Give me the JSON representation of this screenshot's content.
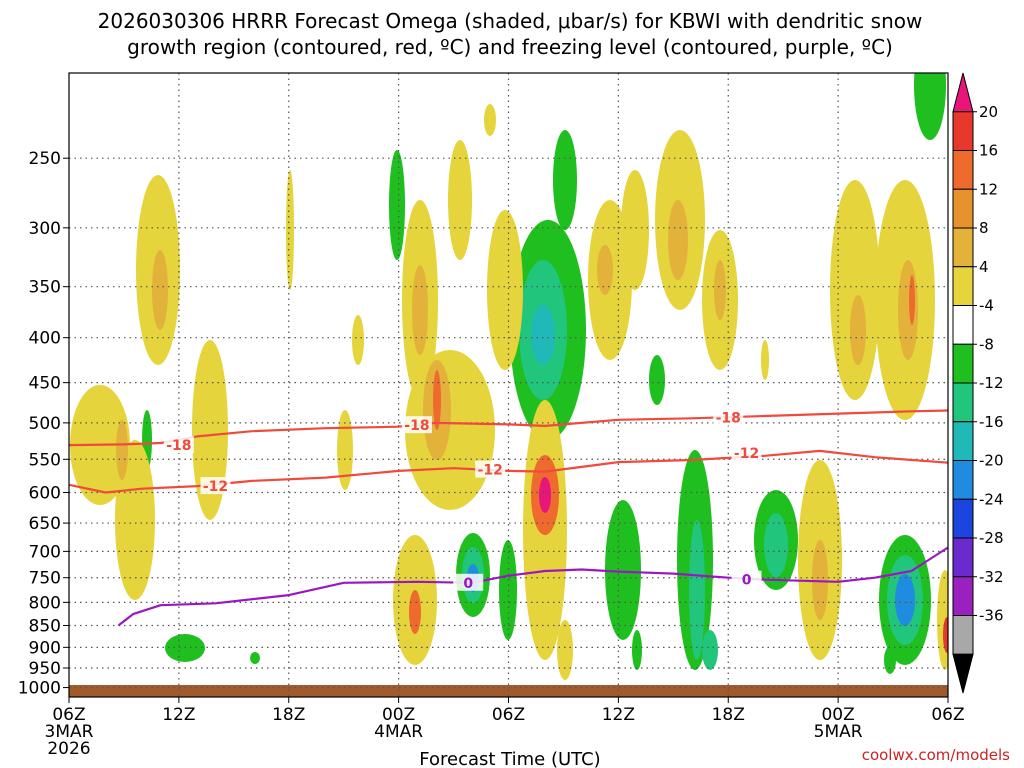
{
  "chart_data": {
    "type": "heatmap",
    "title_lines": [
      "2026030306 HRRR Forecast Omega (shaded, μbar/s) for KBWI with dendritic snow",
      "growth region (contoured, red, ºC) and freezing level (contoured, purple, ºC)"
    ],
    "xlabel": "Forecast Time (UTC)",
    "credit": "coolwx.com/models",
    "x_range_hours": [
      0,
      48
    ],
    "x_ticks": [
      {
        "h": 0,
        "lines": [
          "06Z",
          "3MAR",
          "2026"
        ]
      },
      {
        "h": 6,
        "lines": [
          "12Z"
        ]
      },
      {
        "h": 12,
        "lines": [
          "18Z"
        ]
      },
      {
        "h": 18,
        "lines": [
          "00Z",
          "4MAR"
        ]
      },
      {
        "h": 24,
        "lines": [
          "06Z"
        ]
      },
      {
        "h": 30,
        "lines": [
          "12Z"
        ]
      },
      {
        "h": 36,
        "lines": [
          "18Z"
        ]
      },
      {
        "h": 42,
        "lines": [
          "00Z",
          "5MAR"
        ]
      },
      {
        "h": 48,
        "lines": [
          "06Z"
        ]
      }
    ],
    "y_ticks_hpa": [
      250,
      300,
      350,
      400,
      450,
      500,
      550,
      600,
      650,
      700,
      750,
      800,
      850,
      900,
      950,
      1000
    ],
    "y_range_hpa": [
      200,
      1025
    ],
    "colorbar": {
      "labels": [
        "20",
        "16",
        "12",
        "8",
        "4",
        "-4",
        "-8",
        "-12",
        "-16",
        "-20",
        "-24",
        "-28",
        "-32",
        "-36"
      ],
      "colors": [
        "#e8157a",
        "#e8382c",
        "#ef6a2d",
        "#e8922e",
        "#e3b23b",
        "#e5d43b",
        "#ffffff",
        "#1fbf1f",
        "#22c57c",
        "#21b8b8",
        "#1f8ce0",
        "#1c45dd",
        "#6a2acd",
        "#9a20c0",
        "#a8a8a8",
        "#000000"
      ]
    },
    "contours": [
      {
        "label": "-18",
        "color": "#ef4a3c",
        "kind": "dgz",
        "points": [
          [
            0,
            530
          ],
          [
            3,
            529
          ],
          [
            5,
            527
          ],
          [
            7,
            518
          ],
          [
            10,
            511
          ],
          [
            14,
            507
          ],
          [
            18,
            505
          ],
          [
            20,
            500
          ],
          [
            24,
            502
          ],
          [
            26,
            504
          ],
          [
            30,
            496
          ],
          [
            34,
            494
          ],
          [
            38,
            491
          ],
          [
            42,
            488
          ],
          [
            46,
            485
          ],
          [
            48,
            484
          ]
        ],
        "labels": [
          [
            6,
            530
          ],
          [
            19,
            503
          ],
          [
            36,
            493
          ]
        ]
      },
      {
        "label": "-12",
        "color": "#ef4a3c",
        "kind": "dgz",
        "points": [
          [
            0,
            588
          ],
          [
            2,
            600
          ],
          [
            4,
            594
          ],
          [
            7,
            590
          ],
          [
            10,
            582
          ],
          [
            14,
            577
          ],
          [
            18,
            567
          ],
          [
            21,
            563
          ],
          [
            24,
            567
          ],
          [
            26,
            568
          ],
          [
            30,
            554
          ],
          [
            34,
            551
          ],
          [
            38,
            545
          ],
          [
            41,
            538
          ],
          [
            44,
            547
          ],
          [
            48,
            555
          ]
        ],
        "labels": [
          [
            8,
            590
          ],
          [
            23,
            565
          ],
          [
            37,
            541
          ]
        ]
      },
      {
        "label": "0",
        "color": "#9b17c3",
        "kind": "fzl",
        "points": [
          [
            2.7,
            850
          ],
          [
            3.5,
            825
          ],
          [
            5,
            806
          ],
          [
            8,
            802
          ],
          [
            12,
            785
          ],
          [
            15,
            760
          ],
          [
            19,
            758
          ],
          [
            22,
            760
          ],
          [
            24,
            746
          ],
          [
            26,
            737
          ],
          [
            28,
            734
          ],
          [
            30,
            738
          ],
          [
            33,
            742
          ],
          [
            36,
            750
          ],
          [
            38,
            754
          ],
          [
            42,
            758
          ],
          [
            44,
            750
          ],
          [
            46,
            737
          ],
          [
            48,
            693
          ]
        ],
        "labels": [
          [
            21.8,
            760
          ],
          [
            37,
            754
          ]
        ]
      }
    ]
  }
}
